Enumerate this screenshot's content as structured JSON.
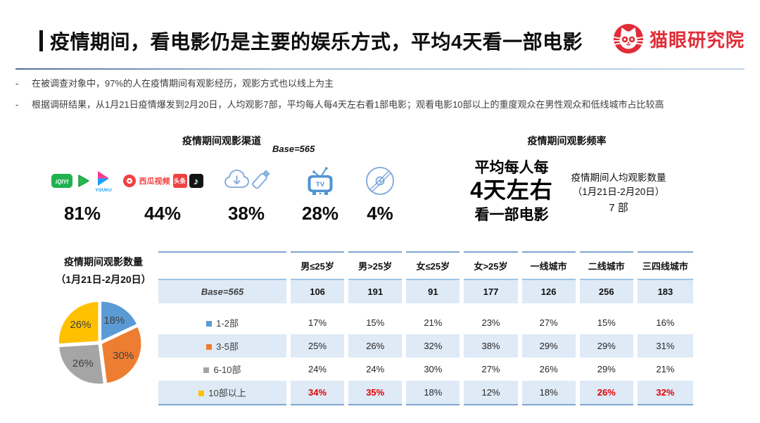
{
  "header": {
    "title": "疫情期间，看电影仍是主要的娱乐方式，平均4天看一部电影",
    "logo_text": "猫眼研究院",
    "brand_color": "#e02d38"
  },
  "bullet_dash": "-",
  "bullets": [
    "在被调查对象中，97%的人在疫情期间有观影经历，观影方式也以线上为主",
    "根据调研结果，从1月21日疫情爆发到2月20日，人均观影7部，平均每人每4天左右看1部电影；观看电影10部以上的重度观众在男性观众和低线城市占比较高"
  ],
  "channels": {
    "title": "疫情期间观影渠道",
    "base_label": "Base=565",
    "items": [
      {
        "value": "81%",
        "iqiyi_text": "iQIYI",
        "youku_text": "YOUKU"
      },
      {
        "value": "44%",
        "xigua_text": "西瓜视频",
        "toutiao_text": "头条",
        "douyin_note": "♪"
      },
      {
        "value": "38%"
      },
      {
        "value": "28%",
        "tv_text": "TV"
      },
      {
        "value": "4%"
      }
    ]
  },
  "frequency": {
    "title": "疫情期间观影频率",
    "main_line1": "平均每人每",
    "main_line2": "4天左右",
    "main_line3": "看一部电影",
    "side_line1": "疫情期间人均观影数量",
    "side_line2": "（1月21日-2月20日）",
    "side_line3": "7 部"
  },
  "pie_panel": {
    "title_line1": "疫情期间观影数量",
    "title_line2": "（1月21日-2月20日）"
  },
  "chart_data": [
    {
      "type": "pie",
      "title": "疫情期间观影数量（1月21日-2月20日）",
      "labels": [
        "1-2部",
        "3-5部",
        "6-10部",
        "10部以上"
      ],
      "values": [
        18,
        30,
        26,
        26
      ],
      "colors": [
        "#5b9bd5",
        "#ed7d31",
        "#a5a5a5",
        "#ffc000"
      ],
      "unit": "%",
      "label_color": "#404040",
      "legend_position": "table-row-markers"
    },
    {
      "type": "table",
      "base_note": "Base=565",
      "columns": [
        "男≤25岁",
        "男>25岁",
        "女≤25岁",
        "女>25岁",
        "一线城市",
        "二线城市",
        "三四线城市"
      ],
      "base_values": [
        "106",
        "191",
        "91",
        "177",
        "126",
        "256",
        "183"
      ],
      "rows": [
        {
          "label": "1-2部",
          "marker_color": "#5b9bd5",
          "values": [
            "17%",
            "15%",
            "21%",
            "23%",
            "27%",
            "15%",
            "16%"
          ],
          "red_cols": []
        },
        {
          "label": "3-5部",
          "marker_color": "#ed7d31",
          "values": [
            "25%",
            "26%",
            "32%",
            "38%",
            "29%",
            "29%",
            "31%"
          ],
          "red_cols": []
        },
        {
          "label": "6-10部",
          "marker_color": "#a5a5a5",
          "values": [
            "24%",
            "24%",
            "30%",
            "27%",
            "26%",
            "29%",
            "21%"
          ],
          "red_cols": []
        },
        {
          "label": "10部以上",
          "marker_color": "#ffc000",
          "values": [
            "34%",
            "35%",
            "18%",
            "12%",
            "18%",
            "26%",
            "32%"
          ],
          "red_cols": [
            0,
            1,
            5,
            6
          ]
        }
      ],
      "highlight_color": "#e00000",
      "stripe_color": "#deeaf6",
      "border_color": "#7ea6d0"
    }
  ]
}
